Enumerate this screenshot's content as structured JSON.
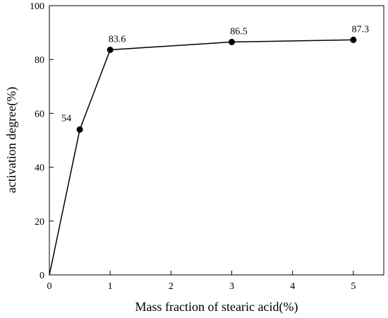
{
  "chart_data": {
    "type": "line",
    "title": "",
    "xlabel": "Mass fraction of stearic acid(%)",
    "ylabel": "activation degree(%)",
    "xlim": [
      0,
      5.5
    ],
    "ylim": [
      0,
      100
    ],
    "x_ticks": [
      0,
      1,
      2,
      3,
      4,
      5
    ],
    "y_ticks": [
      0,
      20,
      40,
      60,
      80,
      100
    ],
    "grid": false,
    "series": [
      {
        "x": [
          0,
          0.5,
          1,
          3,
          5
        ],
        "values": [
          0,
          54,
          83.6,
          86.5,
          87.3
        ],
        "markers": [
          false,
          true,
          true,
          true,
          true
        ],
        "labels": [
          "",
          "54",
          "83.6",
          "86.5",
          "87.3"
        ]
      }
    ],
    "colors": {
      "line": "#000000",
      "marker": "#000000",
      "axis": "#000000"
    }
  }
}
